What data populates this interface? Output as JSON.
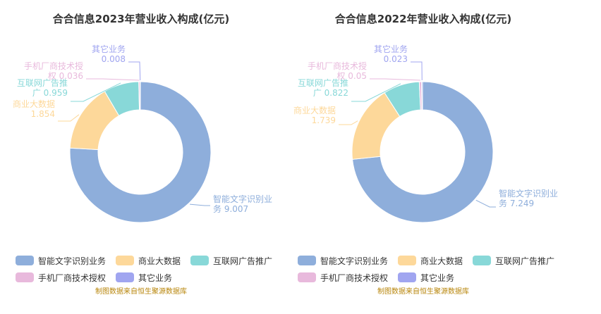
{
  "colors": {
    "智能文字识别业务": "#8eaedb",
    "商业大数据": "#fdd89a",
    "互联网广告推广": "#88d8d8",
    "手机厂商技术授权": "#e8b9dc",
    "其它业务": "#a0a5f0"
  },
  "chart_data": [
    {
      "type": "pie",
      "title": "合合信息2023年营业收入构成(亿元)",
      "categories": [
        "智能文字识别业务",
        "商业大数据",
        "互联网广告推广",
        "手机厂商技术授权",
        "其它业务"
      ],
      "values": [
        9.007,
        1.854,
        0.959,
        0.036,
        0.008
      ],
      "value_labels": [
        "9.007",
        "1.854",
        "0.959",
        "0.036",
        "0.008"
      ],
      "legend_position": "bottom",
      "source_note": "制图数据来自恒生聚源数据库"
    },
    {
      "type": "pie",
      "title": "合合信息2022年营业收入构成(亿元)",
      "categories": [
        "智能文字识别业务",
        "商业大数据",
        "互联网广告推广",
        "手机厂商技术授权",
        "其它业务"
      ],
      "values": [
        7.249,
        1.739,
        0.822,
        0.05,
        0.023
      ],
      "value_labels": [
        "7.249",
        "1.739",
        "0.822",
        "0.05",
        "0.023"
      ],
      "legend_position": "bottom",
      "source_note": "制图数据来自恒生聚源数据库"
    }
  ]
}
